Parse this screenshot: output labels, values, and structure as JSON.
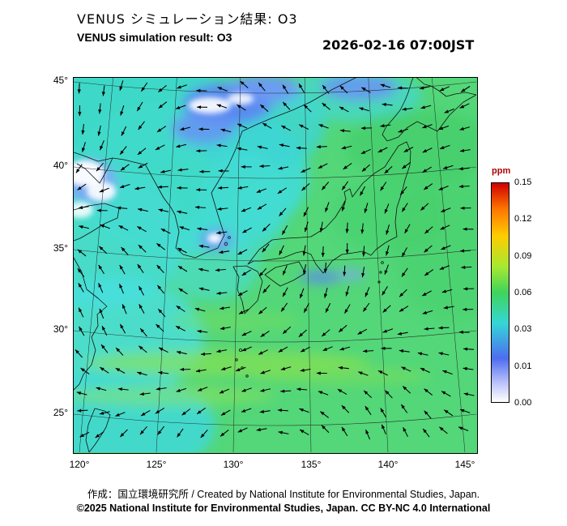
{
  "header": {
    "title_jp": "VENUS シミュレーション結果: O3",
    "title_en": "VENUS simulation result: O3",
    "timestamp": "2026-02-16 07:00JST"
  },
  "map": {
    "lat_ticks": [
      "45°",
      "40°",
      "35°",
      "30°",
      "25°"
    ],
    "lon_ticks": [
      "120°",
      "125°",
      "130°",
      "135°",
      "140°",
      "145°"
    ]
  },
  "colorbar": {
    "unit": "ppm",
    "ticks": [
      "0.15",
      "0.12",
      "0.09",
      "0.06",
      "0.03",
      "0.01",
      "0.00"
    ],
    "colors_top_to_bottom": [
      "#cf0000",
      "#ff7700",
      "#ffcc00",
      "#a8e830",
      "#3fd45c",
      "#35d6d6",
      "#4d6df0",
      "#b9c0fa",
      "#ffffff"
    ]
  },
  "footer": {
    "credit": "作成：国立環境研究所 / Created by National Institute for Environmental Studies, Japan.",
    "copyright": "©2025 National Institute for Environmental Studies, Japan. CC BY-NC 4.0 International"
  },
  "chart_data": {
    "type": "heatmap",
    "title": "VENUS simulation result: O3",
    "timestamp": "2026-02-16 07:00JST",
    "variable": "O3",
    "unit": "ppm",
    "xlabel": "",
    "ylabel": "",
    "lon_range": [
      120,
      145
    ],
    "lat_range": [
      25,
      45
    ],
    "color_levels_ppm": [
      0.0,
      0.01,
      0.03,
      0.06,
      0.09,
      0.12,
      0.15
    ],
    "field_summary": [
      {
        "region": "most of domain (Pacific, Japan, East China Sea)",
        "o3_ppm": "0.04-0.06 (green)"
      },
      {
        "region": "Sea of Japan / Yellow Sea (upper-left quadrant)",
        "o3_ppm": "0.02-0.04 (cyan)"
      },
      {
        "region": "northern Sea of Japan patches",
        "o3_ppm": "0.00-0.01 (blue)"
      },
      {
        "region": "west of Korean coast near 39-40N",
        "o3_ppm": "0.00 (white)"
      },
      {
        "region": "zonal bands near 27-28N",
        "o3_ppm": "0.06-0.07 (yellow-green)"
      }
    ],
    "overlay": "wind vector field (black arrows)"
  }
}
